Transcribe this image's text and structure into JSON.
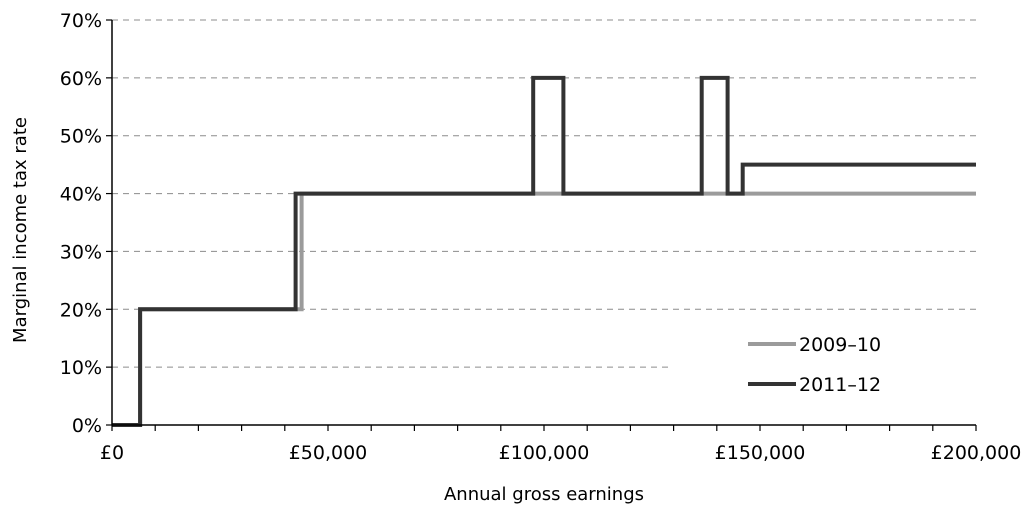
{
  "chart_data": {
    "type": "line",
    "step": true,
    "title": "",
    "xlabel": "Annual gross earnings",
    "ylabel": "Marginal income tax rate",
    "xlim": [
      0,
      200000
    ],
    "ylim": [
      0,
      70
    ],
    "x_ticks": [
      {
        "value": 0,
        "label": "£0"
      },
      {
        "value": 50000,
        "label": "£50,000"
      },
      {
        "value": 100000,
        "label": "£100,000"
      },
      {
        "value": 150000,
        "label": "£150,000"
      },
      {
        "value": 200000,
        "label": "£200,000"
      }
    ],
    "x_minor_tick_step": 10000,
    "y_ticks": [
      {
        "value": 0,
        "label": "0%"
      },
      {
        "value": 10,
        "label": "10%"
      },
      {
        "value": 20,
        "label": "20%"
      },
      {
        "value": 30,
        "label": "30%"
      },
      {
        "value": 40,
        "label": "40%"
      },
      {
        "value": 50,
        "label": "50%"
      },
      {
        "value": 60,
        "label": "60%"
      },
      {
        "value": 70,
        "label": "70%"
      }
    ],
    "grid": "horizontal dashed",
    "legend_position": "bottom-right",
    "series": [
      {
        "name": "2009–10",
        "color": "#9b9b9b",
        "points": [
          [
            0,
            0
          ],
          [
            6500,
            0
          ],
          [
            6500,
            20
          ],
          [
            43900,
            20
          ],
          [
            43900,
            40
          ],
          [
            200000,
            40
          ]
        ]
      },
      {
        "name": "2011–12",
        "color": "#333333",
        "points": [
          [
            0,
            0
          ],
          [
            6500,
            0
          ],
          [
            6500,
            20
          ],
          [
            42500,
            20
          ],
          [
            42500,
            40
          ],
          [
            97500,
            40
          ],
          [
            97500,
            60
          ],
          [
            104500,
            60
          ],
          [
            104500,
            40
          ],
          [
            136500,
            40
          ],
          [
            136500,
            60
          ],
          [
            142500,
            60
          ],
          [
            142500,
            40
          ],
          [
            146000,
            40
          ],
          [
            146000,
            45
          ],
          [
            200000,
            45
          ]
        ]
      }
    ]
  }
}
